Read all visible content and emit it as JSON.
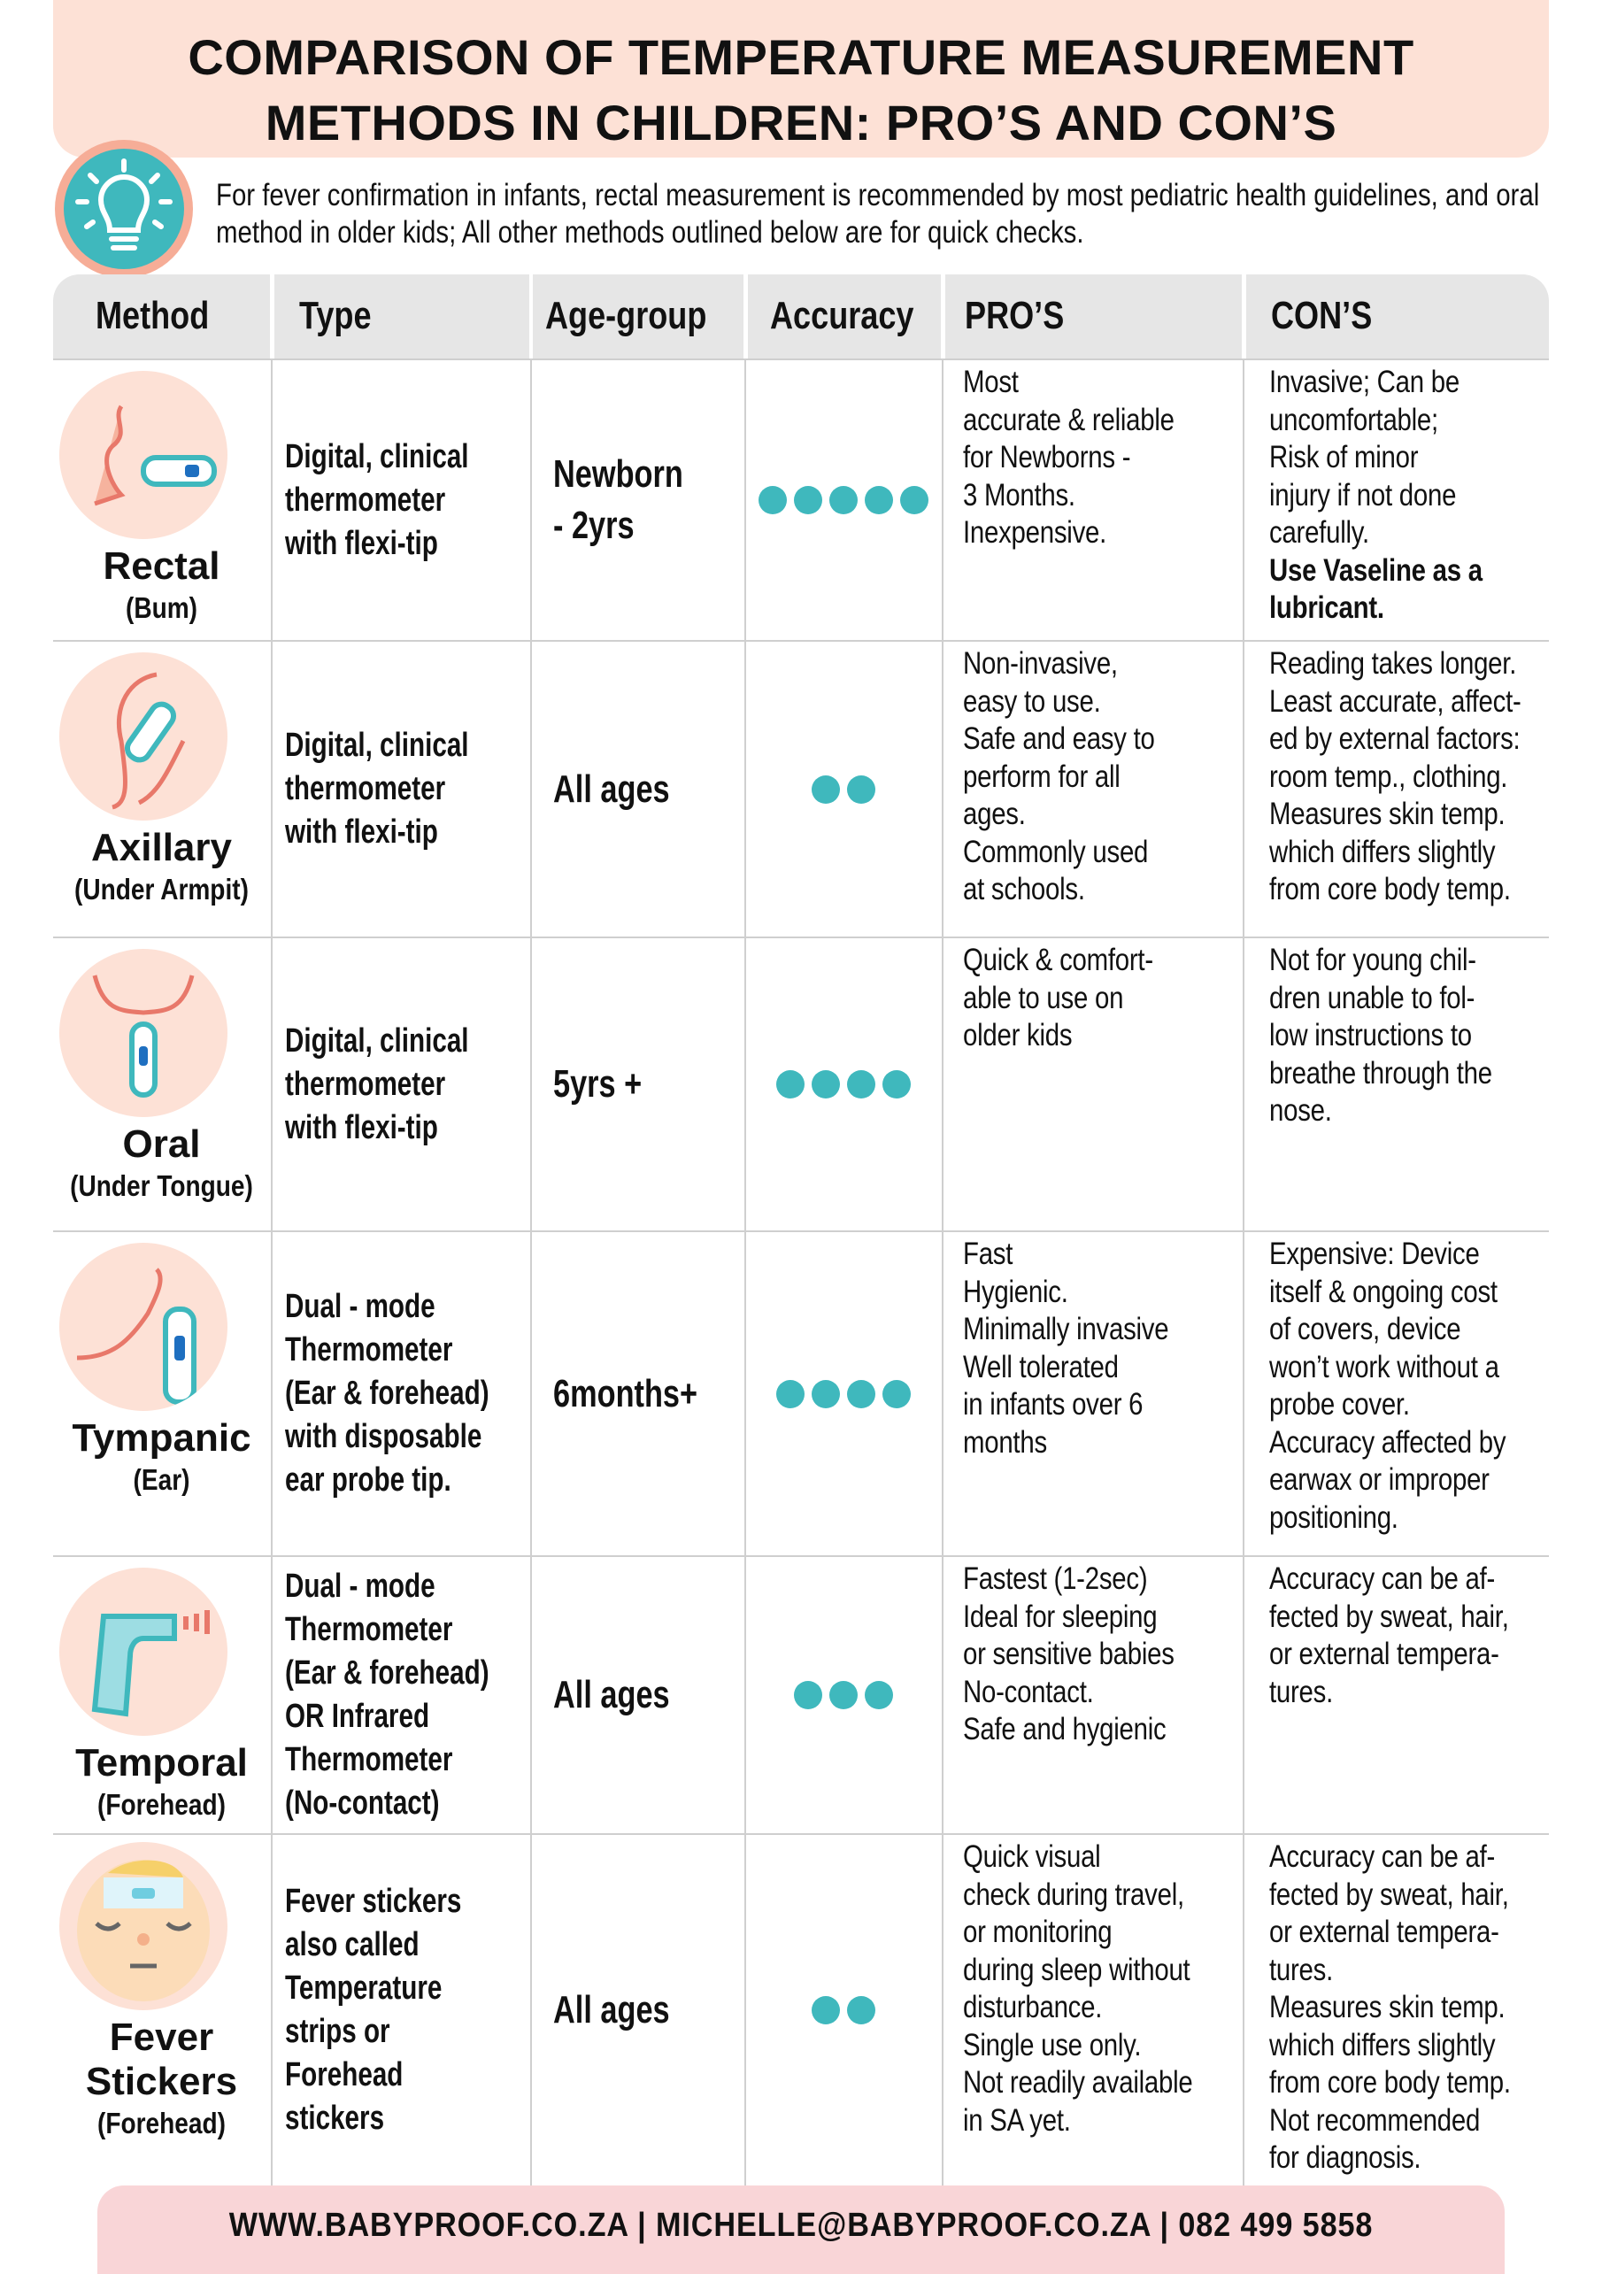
{
  "title": {
    "line1": "COMPARISON OF TEMPERATURE MEASUREMENT",
    "line2": "METHODS IN CHILDREN: PRO’S AND CON’S"
  },
  "intro": {
    "icon": "lightbulb-icon",
    "text": "For fever confirmation in infants, rectal measurement is recommended by most pediatric health guidelines, and oral method in older kids; All other methods outlined below are for quick checks."
  },
  "colors": {
    "accent": "#3fb8bd",
    "title_bg": "#fde1d6",
    "footer_bg": "#f9d5d7",
    "header_bg": "#e6e6e6",
    "icon_bg": "#fde1d6"
  },
  "headers": [
    "Method",
    "Type",
    "Age-group",
    "Accuracy",
    "PRO’S",
    "CON’S"
  ],
  "rows": [
    {
      "method": "Rectal",
      "sub": "(Bum)",
      "icon": "rectal-thermometer-icon",
      "type": "Digital, clinical\nthermometer\nwith flexi-tip",
      "age": "Newborn\n- 2yrs",
      "accuracy": 5,
      "pros": "Most\naccurate & reliable\nfor Newborns -\n3 Months.\nInexpensive.",
      "cons": "Invasive; Can be\nuncomfortable;\nRisk of minor\ninjury if not done\ncarefully.",
      "cons_bold": "Use Vaseline as a\nlubricant."
    },
    {
      "method": "Axillary",
      "sub": "(Under Armpit)",
      "icon": "armpit-thermometer-icon",
      "type": "Digital, clinical\nthermometer\nwith flexi-tip",
      "age": "All ages",
      "accuracy": 2,
      "pros": "Non-invasive,\neasy to use.\nSafe and easy to\nperform for all\nages.\nCommonly used\nat schools.",
      "cons": "Reading takes longer.\nLeast accurate, affect-\ned by external factors:\nroom temp., clothing.\nMeasures skin temp.\nwhich differs slightly\nfrom core body temp."
    },
    {
      "method": "Oral",
      "sub": "(Under Tongue)",
      "icon": "oral-thermometer-icon",
      "type": "Digital, clinical\nthermometer\nwith flexi-tip",
      "age": "5yrs +",
      "accuracy": 4,
      "pros": "Quick & comfort-\nable to use on\nolder kids",
      "cons": "Not for young chil-\ndren unable to fol-\nlow instructions to\nbreathe through the\nnose."
    },
    {
      "method": "Tympanic",
      "sub": "(Ear)",
      "icon": "ear-thermometer-icon",
      "type": "Dual - mode\nThermometer\n(Ear & forehead)\nwith disposable\near probe tip.",
      "age": "6months+",
      "accuracy": 4,
      "pros": "Fast\nHygienic.\nMinimally invasive\nWell tolerated\nin infants over 6\nmonths",
      "cons": "Expensive: Device\nitself & ongoing cost\nof covers, device\nwon’t work without a\nprobe cover.\nAccuracy affected by\nearwax or improper\npositioning."
    },
    {
      "method": "Temporal",
      "sub": "(Forehead)",
      "icon": "infrared-thermometer-icon",
      "type": "Dual - mode\nThermometer\n(Ear & forehead)\nOR Infrared\nThermometer\n(No-contact)",
      "age": "All ages",
      "accuracy": 3,
      "pros": "Fastest (1-2sec)\nIdeal for sleeping\nor sensitive babies\nNo-contact.\nSafe and hygienic",
      "cons": "Accuracy can be af-\nfected by sweat, hair,\nor external tempera-\ntures."
    },
    {
      "method": "Fever\nStickers",
      "sub": "(Forehead)",
      "icon": "fever-sticker-baby-icon",
      "type": "Fever stickers\nalso called\nTemperature\nstrips or\nForehead\nstickers",
      "age": "All ages",
      "accuracy": 2,
      "pros": "Quick visual\ncheck during travel,\nor monitoring\nduring sleep without\ndisturbance.\nSingle use only.\nNot readily available\nin SA yet.",
      "cons": "Accuracy can be af-\nfected by sweat, hair,\nor external tempera-\ntures.\nMeasures skin temp.\nwhich differs slightly\nfrom core body temp.\nNot recommended\nfor diagnosis."
    }
  ],
  "footer": "WWW.BABYPROOF.CO.ZA | MICHELLE@BABYPROOF.CO.ZA | 082 499 5858"
}
